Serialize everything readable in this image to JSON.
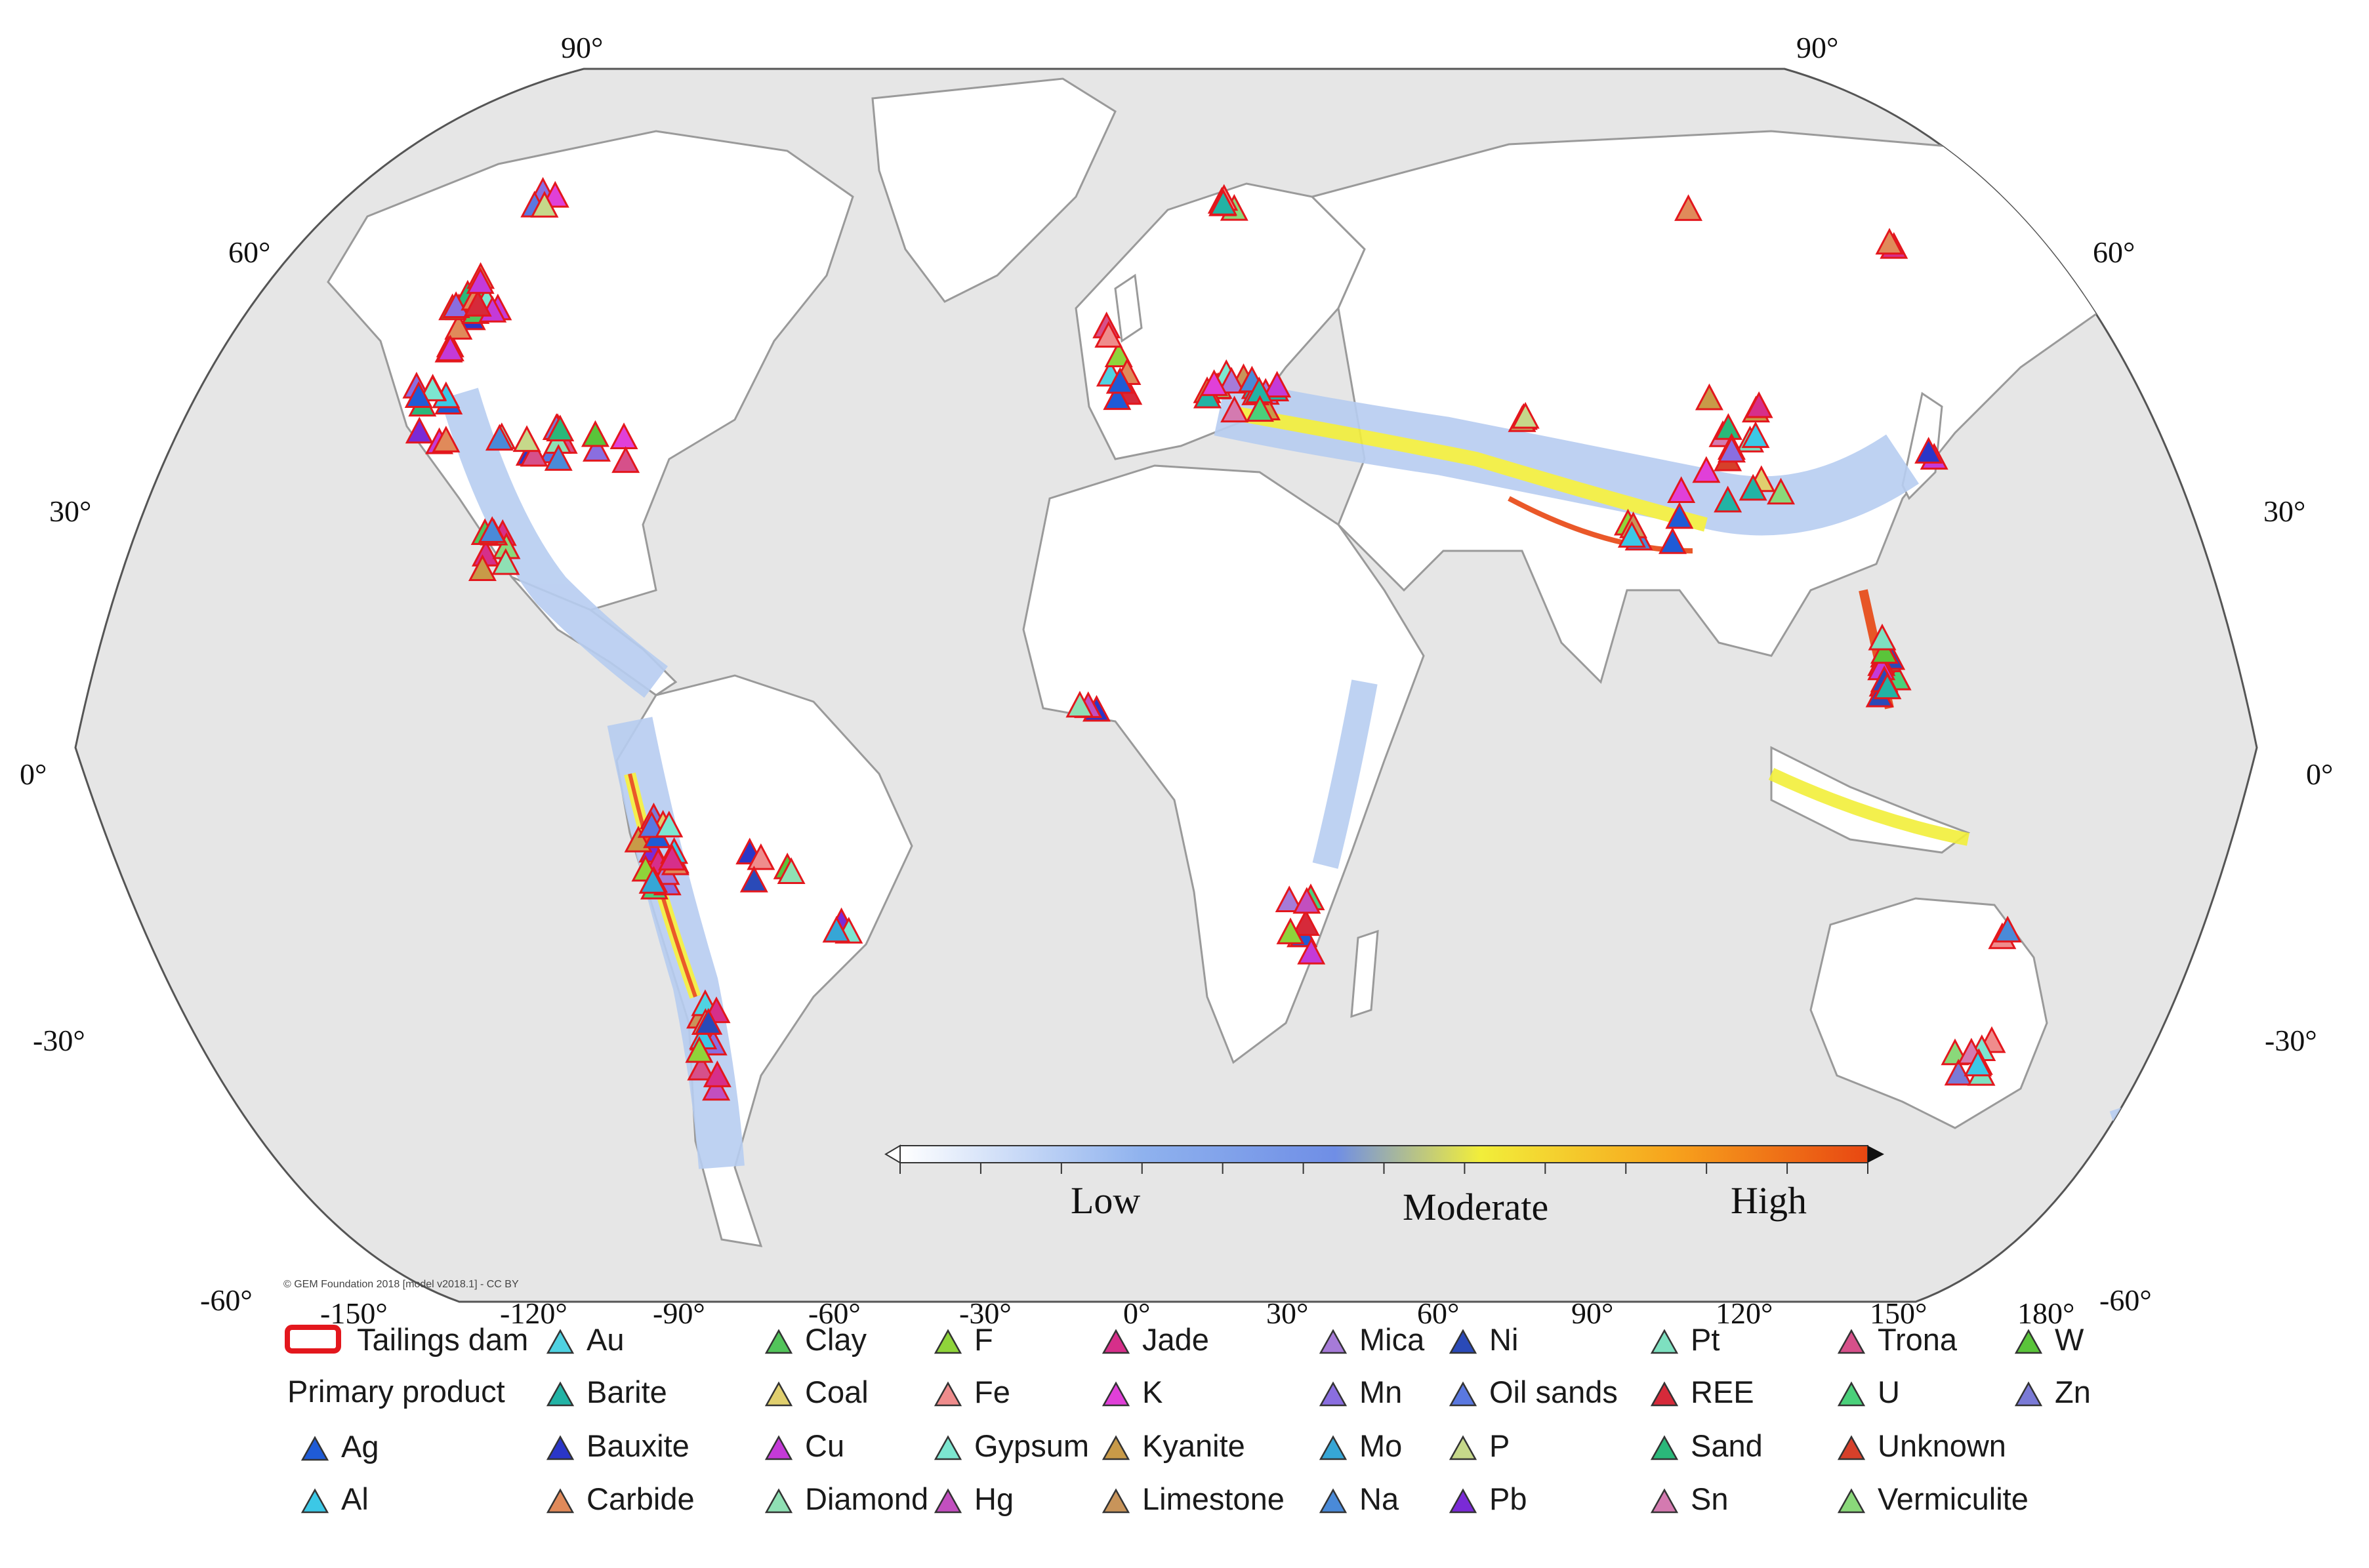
{
  "map": {
    "graticule_labels": {
      "top": [
        "90°",
        "90°"
      ],
      "left": [
        "60°",
        "30°",
        "0°",
        "-30°",
        "-60°"
      ],
      "right": [
        "60°",
        "30°",
        "0°",
        "-30°",
        "-60°"
      ],
      "bottom": [
        "-150°",
        "-120°",
        "-90°",
        "-60°",
        "-30°",
        "0°",
        "30°",
        "60°",
        "90°",
        "120°",
        "150°",
        "180°"
      ]
    },
    "credit": "© GEM Foundation 2018 [model v2018.1] - CC BY",
    "hazard_scale": {
      "labels": [
        "Low",
        "Moderate",
        "High"
      ],
      "colors": [
        "#ffffff",
        "#8fb2ee",
        "#6f8ee6",
        "#f2ee3a",
        "#f7a21c",
        "#e84712"
      ]
    },
    "colors": {
      "ocean": "#e6e6e6",
      "land": "#ffffff",
      "border": "#9a9a9a",
      "hazard_low": "#b7cdf1",
      "hazard_mid": "#f2ee3a",
      "hazard_high": "#e84712"
    }
  },
  "legend": {
    "tailings_label": "Tailings dam",
    "tailings_color": "#e3171d",
    "primary_product_label": "Primary product",
    "products": [
      {
        "label": "Ag",
        "color": "#1f5bd6"
      },
      {
        "label": "Al",
        "color": "#3cc8e6"
      },
      {
        "label": "Au",
        "color": "#4fd2e2"
      },
      {
        "label": "Barite",
        "color": "#22b3a5"
      },
      {
        "label": "Bauxite",
        "color": "#2a36c8"
      },
      {
        "label": "Carbide",
        "color": "#e08a5a"
      },
      {
        "label": "Clay",
        "color": "#52c45a"
      },
      {
        "label": "Coal",
        "color": "#e0cf6e"
      },
      {
        "label": "Cu",
        "color": "#c43ad8"
      },
      {
        "label": "Diamond",
        "color": "#8fe0b4"
      },
      {
        "label": "F",
        "color": "#8fd43a"
      },
      {
        "label": "Fe",
        "color": "#ef8c8c"
      },
      {
        "label": "Gypsum",
        "color": "#7ce6d0"
      },
      {
        "label": "Hg",
        "color": "#c24fbf"
      },
      {
        "label": "Jade",
        "color": "#d62f8a"
      },
      {
        "label": "K",
        "color": "#e040d8"
      },
      {
        "label": "Kyanite",
        "color": "#c89a48"
      },
      {
        "label": "Limestone",
        "color": "#c8945a"
      },
      {
        "label": "Mica",
        "color": "#a67bd8"
      },
      {
        "label": "Mn",
        "color": "#8a6ee0"
      },
      {
        "label": "Mo",
        "color": "#36a6d6"
      },
      {
        "label": "Na",
        "color": "#4a8ad8"
      },
      {
        "label": "Ni",
        "color": "#2a4ab8"
      },
      {
        "label": "Oil sands",
        "color": "#5a78e0"
      },
      {
        "label": "P",
        "color": "#c6d88a"
      },
      {
        "label": "Pb",
        "color": "#7a2ad6"
      },
      {
        "label": "Pt",
        "color": "#7ee0c0"
      },
      {
        "label": "REE",
        "color": "#d62a3a"
      },
      {
        "label": "Sand",
        "color": "#2ab87a"
      },
      {
        "label": "Sn",
        "color": "#d47ab0"
      },
      {
        "label": "Trona",
        "color": "#d6508a"
      },
      {
        "label": "U",
        "color": "#4ad07a"
      },
      {
        "label": "Unknown",
        "color": "#d6402a"
      },
      {
        "label": "Vermiculite",
        "color": "#8ad87a"
      },
      {
        "label": "W",
        "color": "#5ac43a"
      },
      {
        "label": "Zn",
        "color": "#7a7ad6"
      }
    ]
  }
}
